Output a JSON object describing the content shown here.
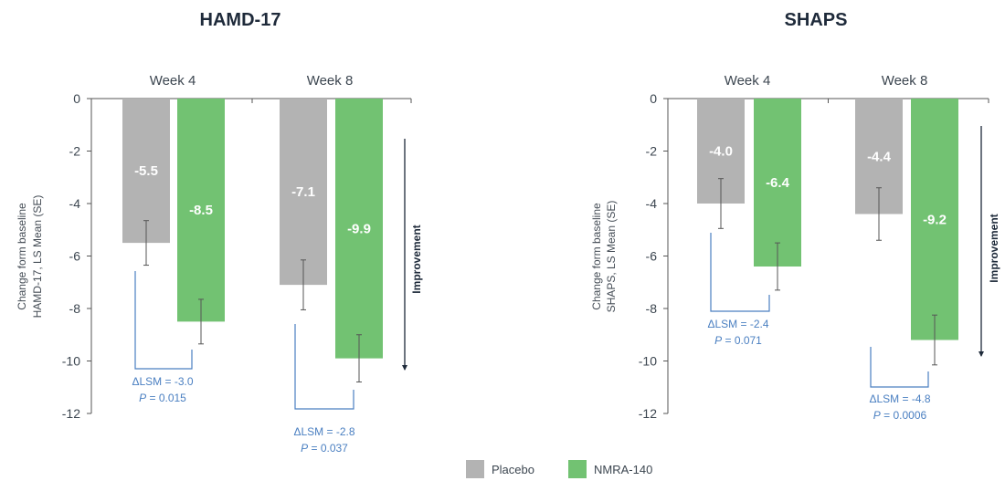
{
  "colors": {
    "placebo": "#b3b3b3",
    "drug": "#72c272",
    "axis": "#555555",
    "annotation": "#4a7fc1",
    "arrow": "#1e2a3a"
  },
  "legend": [
    {
      "label": "Placebo",
      "color_key": "placebo"
    },
    {
      "label": "NMRA-140",
      "color_key": "drug"
    }
  ],
  "chart_data": [
    {
      "type": "bar",
      "title": "HAMD-17",
      "ylabel_lines": [
        "Change form baseline",
        "HAMD-17, LS Mean (SE)"
      ],
      "ylim": [
        -12,
        0
      ],
      "yticks": [
        0,
        -2,
        -4,
        -6,
        -8,
        -10,
        -12
      ],
      "categories": [
        "Week 4",
        "Week 8"
      ],
      "series": [
        {
          "name": "Placebo",
          "color_key": "placebo",
          "values": [
            -5.5,
            -7.1
          ],
          "labels": [
            "-5.5",
            "-7.1"
          ],
          "se": [
            0.85,
            0.95
          ]
        },
        {
          "name": "NMRA-140",
          "color_key": "drug",
          "values": [
            -8.5,
            -9.9
          ],
          "labels": [
            "-8.5",
            "-9.9"
          ],
          "se": [
            0.85,
            0.9
          ]
        }
      ],
      "side_label": "Improvement",
      "comparisons": [
        {
          "line1": "ΔLSM = -3.0",
          "p_label": "P",
          "p_value": " = 0.015"
        },
        {
          "line1": "ΔLSM = -2.8",
          "p_label": "P",
          "p_value": " = 0.037"
        }
      ]
    },
    {
      "type": "bar",
      "title": "SHAPS",
      "ylabel_lines": [
        "Change form baseline",
        "SHAPS, LS Mean (SE)"
      ],
      "ylim": [
        -12,
        0
      ],
      "yticks": [
        0,
        -2,
        -4,
        -6,
        -8,
        -10,
        -12
      ],
      "categories": [
        "Week 4",
        "Week 8"
      ],
      "series": [
        {
          "name": "Placebo",
          "color_key": "placebo",
          "values": [
            -4.0,
            -4.4
          ],
          "labels": [
            "-4.0",
            "-4.4"
          ],
          "se": [
            0.95,
            1.0
          ]
        },
        {
          "name": "NMRA-140",
          "color_key": "drug",
          "values": [
            -6.4,
            -9.2
          ],
          "labels": [
            "-6.4",
            "-9.2"
          ],
          "se": [
            0.9,
            0.95
          ]
        }
      ],
      "side_label": "Improvement",
      "comparisons": [
        {
          "line1": "ΔLSM = -2.4",
          "p_label": "P",
          "p_value": " = 0.071"
        },
        {
          "line1": "ΔLSM = -4.8",
          "p_label": "P",
          "p_value": " = 0.0006"
        }
      ]
    }
  ]
}
